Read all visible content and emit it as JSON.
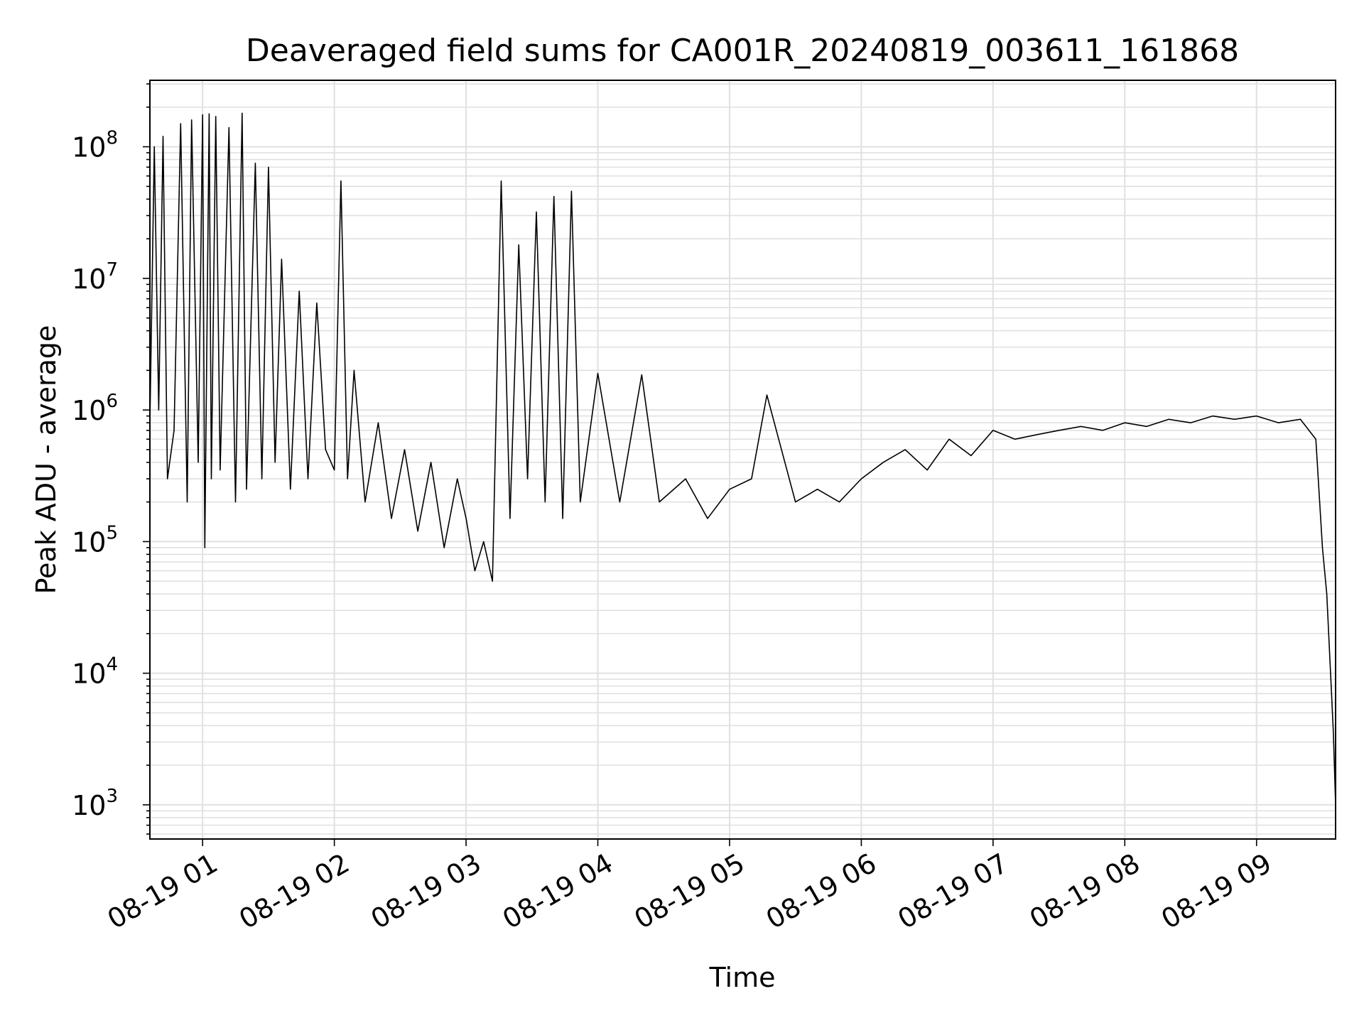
{
  "chart_data": {
    "type": "line",
    "title": "Deaveraged field sums for CA001R_20240819_003611_161868",
    "xlabel": "Time",
    "ylabel": "Peak ADU - average",
    "yscale": "log",
    "xlim": [
      "08-19 00:36",
      "08-19 09:36"
    ],
    "ylim": [
      550,
      320000000
    ],
    "grid": true,
    "x_ticks": [
      "08-19 01",
      "08-19 02",
      "08-19 03",
      "08-19 04",
      "08-19 05",
      "08-19 06",
      "08-19 07",
      "08-19 08",
      "08-19 09"
    ],
    "y_ticks": [
      {
        "base": "10",
        "exp": "3",
        "value": 1000
      },
      {
        "base": "10",
        "exp": "4",
        "value": 10000
      },
      {
        "base": "10",
        "exp": "5",
        "value": 100000
      },
      {
        "base": "10",
        "exp": "6",
        "value": 1000000
      },
      {
        "base": "10",
        "exp": "7",
        "value": 10000000
      },
      {
        "base": "10",
        "exp": "8",
        "value": 100000000
      }
    ],
    "series": [
      {
        "color": "#000000",
        "x": [
          "08-19 00:36",
          "08-19 00:38",
          "08-19 00:40",
          "08-19 00:42",
          "08-19 00:44",
          "08-19 00:47",
          "08-19 00:50",
          "08-19 00:53",
          "08-19 00:55",
          "08-19 00:58",
          "08-19 01:00",
          "08-19 01:01",
          "08-19 01:03",
          "08-19 01:04",
          "08-19 01:06",
          "08-19 01:08",
          "08-19 01:12",
          "08-19 01:15",
          "08-19 01:18",
          "08-19 01:20",
          "08-19 01:24",
          "08-19 01:27",
          "08-19 01:30",
          "08-19 01:33",
          "08-19 01:36",
          "08-19 01:40",
          "08-19 01:44",
          "08-19 01:48",
          "08-19 01:52",
          "08-19 01:56",
          "08-19 02:00",
          "08-19 02:03",
          "08-19 02:06",
          "08-19 02:09",
          "08-19 02:14",
          "08-19 02:20",
          "08-19 02:26",
          "08-19 02:32",
          "08-19 02:38",
          "08-19 02:44",
          "08-19 02:50",
          "08-19 02:56",
          "08-19 03:00",
          "08-19 03:04",
          "08-19 03:08",
          "08-19 03:12",
          "08-19 03:16",
          "08-19 03:20",
          "08-19 03:24",
          "08-19 03:28",
          "08-19 03:32",
          "08-19 03:36",
          "08-19 03:40",
          "08-19 03:44",
          "08-19 03:48",
          "08-19 03:52",
          "08-19 04:00",
          "08-19 04:10",
          "08-19 04:20",
          "08-19 04:28",
          "08-19 04:40",
          "08-19 04:50",
          "08-19 05:00",
          "08-19 05:10",
          "08-19 05:17",
          "08-19 05:30",
          "08-19 05:40",
          "08-19 05:50",
          "08-19 06:00",
          "08-19 06:10",
          "08-19 06:20",
          "08-19 06:30",
          "08-19 06:40",
          "08-19 06:50",
          "08-19 07:00",
          "08-19 07:10",
          "08-19 07:20",
          "08-19 07:30",
          "08-19 07:40",
          "08-19 07:50",
          "08-19 08:00",
          "08-19 08:10",
          "08-19 08:20",
          "08-19 08:30",
          "08-19 08:40",
          "08-19 08:50",
          "08-19 09:00",
          "08-19 09:10",
          "08-19 09:20",
          "08-19 09:27",
          "08-19 09:30",
          "08-19 09:32",
          "08-19 09:34",
          "08-19 09:35",
          "08-19 09:36"
        ],
        "y": [
          800000,
          100000000,
          1000000,
          120000000,
          300000,
          700000,
          150000000,
          200000,
          160000000,
          400000,
          175000000,
          90000,
          178000000,
          300000,
          170000000,
          350000,
          140000000,
          200000,
          180000000,
          250000,
          75000000,
          300000,
          70000000,
          400000,
          14000000,
          250000,
          8000000,
          300000,
          6500000,
          500000,
          350000,
          55000000,
          300000,
          2000000,
          200000,
          800000,
          150000,
          500000,
          120000,
          400000,
          90000,
          300000,
          150000,
          60000,
          100000,
          50000,
          55000000,
          150000,
          18000000,
          300000,
          32000000,
          200000,
          42000000,
          150000,
          46000000,
          200000,
          1900000,
          200000,
          1850000,
          200000,
          300000,
          150000,
          250000,
          300000,
          1300000,
          200000,
          250000,
          200000,
          300000,
          400000,
          500000,
          350000,
          600000,
          450000,
          700000,
          600000,
          650000,
          700000,
          750000,
          700000,
          800000,
          750000,
          850000,
          800000,
          900000,
          850000,
          900000,
          800000,
          850000,
          600000,
          90000,
          40000,
          8000,
          3500,
          1000
        ]
      }
    ]
  }
}
